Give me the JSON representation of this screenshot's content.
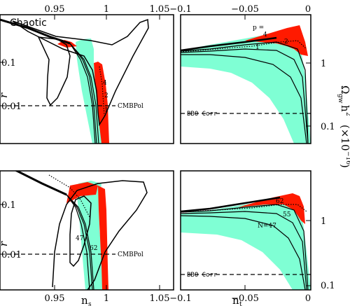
{
  "colors": {
    "cyan": "#7fffd4",
    "red": "#ff1a00",
    "ink": "#000000"
  },
  "chart_data": [
    {
      "type": "contour",
      "panel": "top-left",
      "title": "Chaotic",
      "xlim": [
        0.9,
        1.06
      ],
      "ylim_log": [
        0.001,
        1
      ],
      "x_tick_labels_top": [
        "0.95",
        "1",
        "1.05"
      ],
      "y_tick_labels": [
        "0.01",
        "0.1"
      ],
      "ylabel": "r",
      "hline": {
        "y": 0.01,
        "label": "CMBPol"
      },
      "curve_labels": [
        "4",
        "2",
        "1"
      ],
      "bands": [
        "cyan",
        "red"
      ]
    },
    {
      "type": "contour",
      "panel": "top-right",
      "xlim": [
        -0.1,
        0
      ],
      "ylim_log": [
        0.025,
        5
      ],
      "x_tick_labels_top": [
        "-0.1",
        "-0.05",
        "0"
      ],
      "y_tick_labels": [
        "0.1",
        "1"
      ],
      "ylabel": "Ω_gw h² (×10⁻¹⁶)",
      "hline": {
        "y": 0.07,
        "label": "BBO Corr"
      },
      "curve_labels": [
        "p =",
        "4",
        "2",
        "1"
      ],
      "bands": [
        "cyan",
        "red"
      ]
    },
    {
      "type": "contour",
      "panel": "bottom-left",
      "xlim": [
        0.9,
        1.06
      ],
      "ylim_log": [
        0.001,
        0.45
      ],
      "x_tick_labels": [
        "0.95",
        "1",
        "1.05"
      ],
      "y_tick_labels": [
        "0.01",
        "0.1"
      ],
      "xlabel": "n_s",
      "ylabel": "r",
      "hline": {
        "y": 0.01,
        "label": "CMBPol"
      },
      "curve_labels": [
        "47",
        "62"
      ],
      "bands": [
        "cyan",
        "red"
      ]
    },
    {
      "type": "contour",
      "panel": "bottom-right",
      "xlim": [
        -0.1,
        0
      ],
      "ylim_log": [
        0.025,
        5
      ],
      "x_tick_labels": [
        "-0.1",
        "-0.05",
        "0"
      ],
      "y_tick_labels": [
        "0.1",
        "1"
      ],
      "xlabel": "n_t",
      "ylabel": "Ω_gw h² (×10⁻¹⁶)",
      "hline": {
        "y": 0.07,
        "label": "BBO Corr"
      },
      "curve_labels": [
        "62",
        "55",
        "N=47"
      ],
      "bands": [
        "cyan",
        "red"
      ]
    }
  ],
  "labels": {
    "chaotic": "Chaotic",
    "r_top": "r",
    "r_bottom": "r",
    "ns": "n",
    "ns_sub": "s",
    "nt": "n",
    "nt_sub": "t",
    "omega_main": "Ω",
    "omega_sub": "gw",
    "omega_h": "h",
    "omega_sup": "2",
    "omega_units": "(×10",
    "omega_exp": "−16",
    "omega_close": ")",
    "cmbpol_top": "CMBPol",
    "cmbpol_bottom": "CMBPol",
    "bbo_top": "BBO Corr",
    "bbo_bottom": "BBO Corr",
    "p_eq": "p =",
    "tl_4": "4",
    "tl_2": "2",
    "tl_1": "1",
    "tr_4": "4",
    "tr_2": "2",
    "tr_1": "1",
    "bl_47": "47",
    "bl_62": "62",
    "br_62": "62",
    "br_55": "55",
    "br_47": "N=47"
  },
  "ticks": {
    "top_x_left": [
      "0.95",
      "1",
      "1.05"
    ],
    "top_x_right": [
      "−0.1",
      "−0.05",
      "0"
    ],
    "bot_x_left": [
      "0.95",
      "1",
      "1.05"
    ],
    "bot_x_right": [
      "−0.1",
      "−0.05",
      "0"
    ],
    "tl_y": [
      "0.1",
      "0.01"
    ],
    "bl_y": [
      "0.1",
      "0.01"
    ],
    "tr_y": [
      "1",
      "0.1"
    ],
    "br_y": [
      "1",
      "0.1"
    ]
  }
}
